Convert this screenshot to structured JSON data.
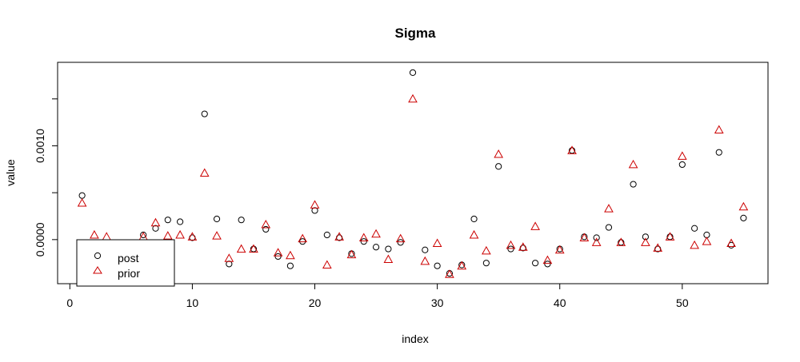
{
  "chart_data": {
    "type": "scatter",
    "title": "Sigma",
    "xlabel": "index",
    "ylabel": "value",
    "xlim": [
      -1,
      57
    ],
    "ylim": [
      -0.00047,
      0.00189
    ],
    "x_ticks": [
      0,
      10,
      20,
      30,
      40,
      50
    ],
    "x_tick_labels": [
      "0",
      "10",
      "20",
      "30",
      "40",
      "50"
    ],
    "y_ticks": [
      0.0,
      0.0005,
      0.001,
      0.0015
    ],
    "y_tick_labels": [
      "0.0000",
      "",
      "0.0010",
      ""
    ],
    "legend": {
      "position": "bottom-left",
      "entries": [
        "post",
        "prior"
      ]
    },
    "series": [
      {
        "name": "post",
        "marker": "circle",
        "color": "#000000",
        "x": [
          1,
          2,
          3,
          4,
          5,
          6,
          7,
          8,
          9,
          10,
          11,
          12,
          13,
          14,
          15,
          16,
          17,
          18,
          19,
          20,
          21,
          22,
          23,
          24,
          25,
          26,
          27,
          28,
          29,
          30,
          31,
          32,
          33,
          34,
          35,
          36,
          37,
          38,
          39,
          40,
          41,
          42,
          43,
          44,
          45,
          46,
          47,
          48,
          49,
          50,
          51,
          52,
          53,
          54,
          55
        ],
        "values": [
          0.00047,
          null,
          null,
          null,
          null,
          5e-05,
          0.00012,
          0.00021,
          0.00019,
          2e-05,
          0.00134,
          0.00022,
          -0.00026,
          0.00021,
          -0.0001,
          0.00011,
          -0.00018,
          -0.00028,
          -2e-05,
          0.00031,
          5e-05,
          2e-05,
          -0.00015,
          -2e-05,
          -8e-05,
          -0.0001,
          -3e-05,
          0.00178,
          -0.00011,
          -0.00028,
          -0.00036,
          -0.00027,
          0.00022,
          -0.00025,
          0.00078,
          -0.0001,
          -9e-05,
          -0.00025,
          -0.00026,
          -0.0001,
          0.00095,
          3e-05,
          2e-05,
          0.00013,
          -3e-05,
          0.00059,
          3e-05,
          -0.0001,
          3e-05,
          0.0008,
          0.00012,
          5e-05,
          0.00093,
          -6e-05,
          0.00023
        ]
      },
      {
        "name": "prior",
        "marker": "triangle",
        "color": "#cc0000",
        "x": [
          1,
          2,
          3,
          4,
          5,
          6,
          7,
          8,
          9,
          10,
          11,
          12,
          13,
          14,
          15,
          16,
          17,
          18,
          19,
          20,
          21,
          22,
          23,
          24,
          25,
          26,
          27,
          28,
          29,
          30,
          31,
          32,
          33,
          34,
          35,
          36,
          37,
          38,
          39,
          40,
          41,
          42,
          43,
          44,
          45,
          46,
          47,
          48,
          49,
          50,
          51,
          52,
          53,
          54,
          55
        ],
        "values": [
          0.00039,
          5e-05,
          3e-05,
          null,
          null,
          3e-05,
          0.00018,
          4e-05,
          5e-05,
          3e-05,
          0.00071,
          4e-05,
          -0.0002,
          -0.0001,
          -0.0001,
          0.00016,
          -0.00014,
          -0.00017,
          1e-05,
          0.00037,
          -0.00027,
          3e-05,
          -0.00016,
          2e-05,
          6e-05,
          -0.00021,
          1e-05,
          0.0015,
          -0.00023,
          -4e-05,
          -0.00037,
          -0.00028,
          5e-05,
          -0.00012,
          0.00091,
          -6e-05,
          -8e-05,
          0.00014,
          -0.00022,
          -0.00011,
          0.00095,
          2e-05,
          -3e-05,
          0.00033,
          -3e-05,
          0.0008,
          -3e-05,
          -9e-05,
          3e-05,
          0.00089,
          -6e-05,
          -2e-05,
          0.00117,
          -4e-05,
          0.00035
        ]
      }
    ]
  }
}
